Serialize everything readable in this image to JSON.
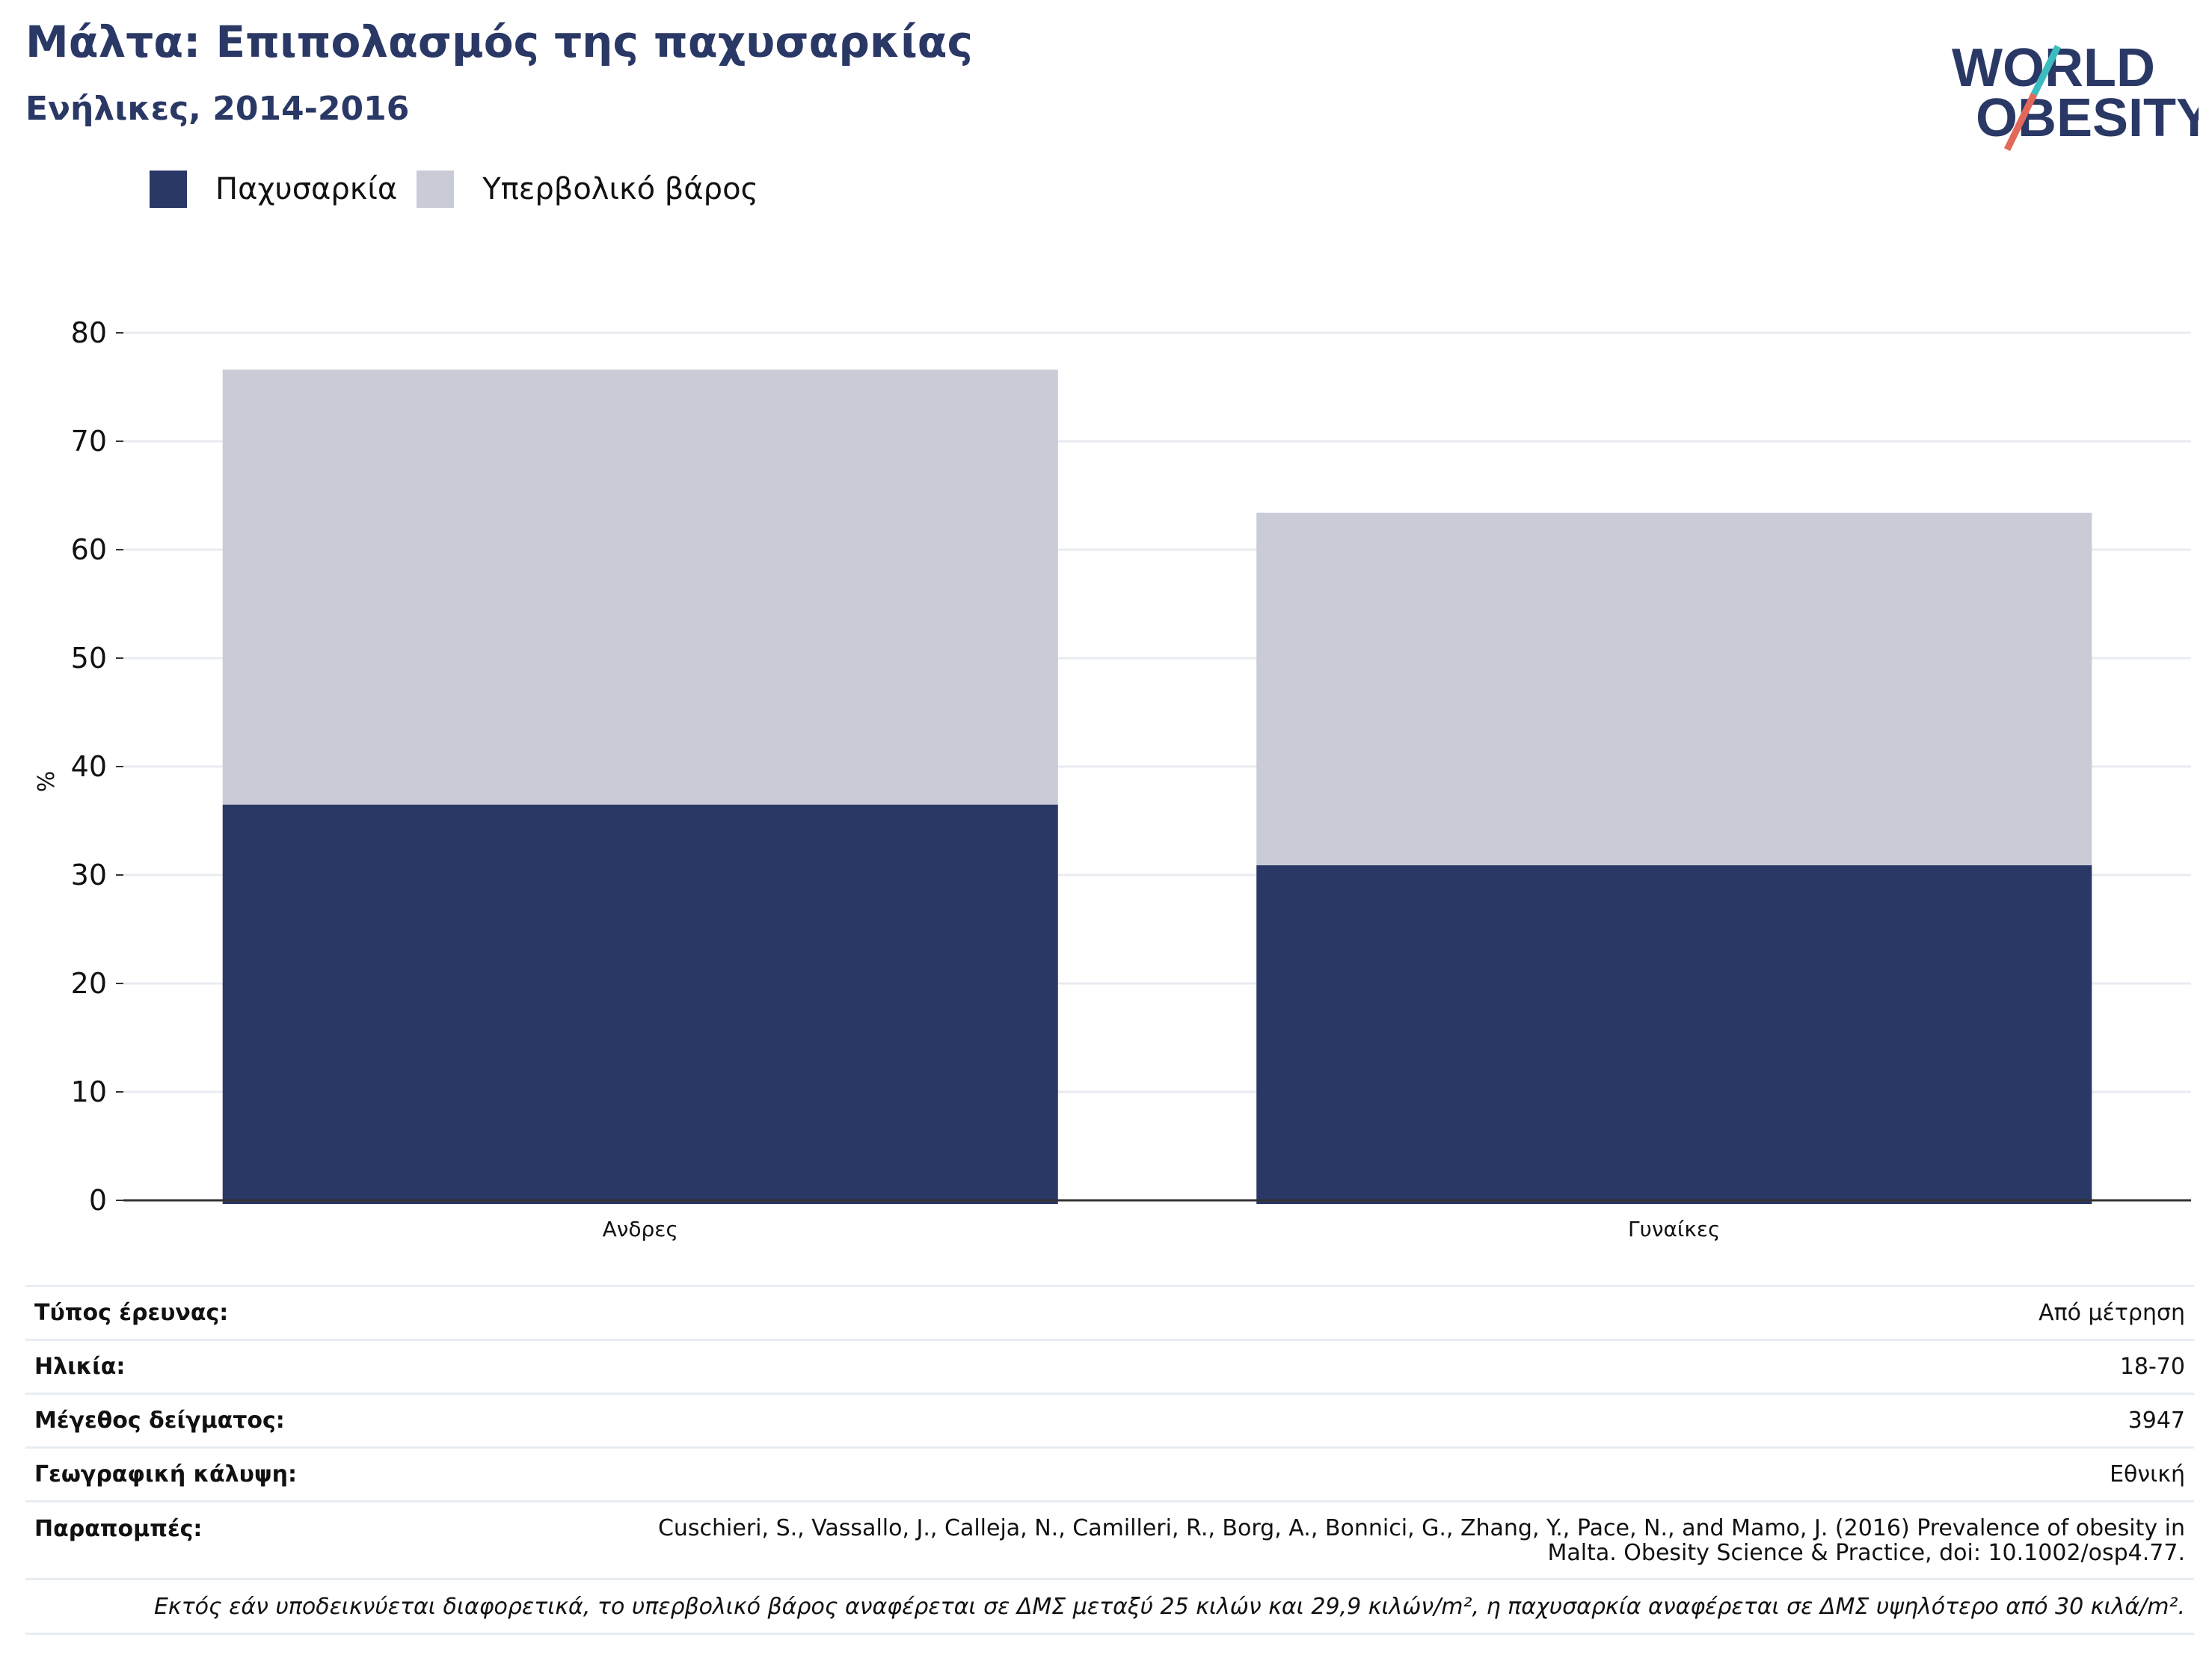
{
  "header": {
    "title": "Μάλτα: Επιπολασμός της παχυσαρκίας",
    "subtitle": "Ενήλικες, 2014-2016"
  },
  "logo": {
    "line1": "WORLD",
    "line2": "OBESITY",
    "icon": "world-obesity-logo",
    "color": "#2a3866",
    "accent1": "#3bbdc0",
    "accent2": "#e2685a"
  },
  "legend": {
    "items": [
      {
        "label": "Παχυσαρκία",
        "color": "#2a3866"
      },
      {
        "label": "Υπερβολικό βάρος",
        "color": "#c9cbd7"
      }
    ]
  },
  "chart_data": {
    "type": "bar",
    "stacked": true,
    "categories": [
      "Ανδρες",
      "Γυναίκες"
    ],
    "series": [
      {
        "name": "Παχυσαρκία",
        "values": [
          36.5,
          30.9
        ],
        "color": "#2a3866"
      },
      {
        "name": "Υπερβολικό βάρος",
        "values": [
          40.1,
          32.5
        ],
        "color": "#c9cbd7"
      }
    ],
    "ylabel": "%",
    "ylim": [
      0,
      80
    ],
    "yticks": [
      0,
      10,
      20,
      30,
      40,
      50,
      60,
      70,
      80
    ],
    "grid": true
  },
  "meta": {
    "rows": [
      {
        "label": "Τύπος έρευνας:",
        "value": "Από μέτρηση"
      },
      {
        "label": "Ηλικία:",
        "value": "18-70"
      },
      {
        "label": "Μέγεθος δείγματος:",
        "value": "3947"
      },
      {
        "label": "Γεωγραφική κάλυψη:",
        "value": "Εθνική"
      }
    ],
    "references": {
      "label": "Παραπομπές:",
      "line1": "Cuschieri, S., Vassallo, J., Calleja, N., Camilleri, R., Borg, A., Bonnici, G., Zhang, Y., Pace, N., and Mamo, J. (2016) Prevalence of obesity in",
      "line2": "Malta. Obesity Science & Practice, doi: 10.1002/osp4.77."
    },
    "note": "Εκτός εάν υποδεικνύεται διαφορετικά, το υπερβολικό βάρος αναφέρεται σε ΔΜΣ μεταξύ 25 κιλών και 29,9 κιλών/m², η παχυσαρκία αναφέρεται σε ΔΜΣ υψηλότερο από 30 κιλά/m²."
  }
}
